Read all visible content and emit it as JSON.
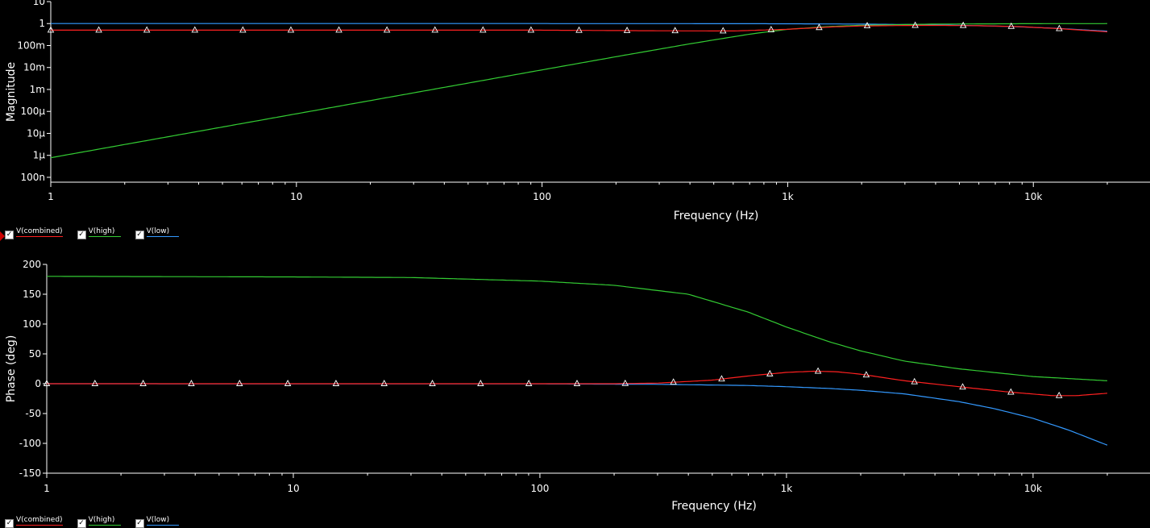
{
  "chart_data": [
    {
      "type": "line",
      "ylabel": "Magnitude",
      "xlabel": "Frequency (Hz)",
      "x_scale": "log",
      "y_scale": "log",
      "xlim": [
        1,
        20000
      ],
      "ylim": [
        6e-08,
        10
      ],
      "x_ticks": [
        {
          "value": 1,
          "label": "1"
        },
        {
          "value": 10,
          "label": "10"
        },
        {
          "value": 100,
          "label": "100"
        },
        {
          "value": 1000,
          "label": "1k"
        },
        {
          "value": 10000,
          "label": "10k"
        }
      ],
      "y_ticks": [
        {
          "value": 10,
          "label": "10"
        },
        {
          "value": 1,
          "label": "1"
        },
        {
          "value": 0.1,
          "label": "100m"
        },
        {
          "value": 0.01,
          "label": "10m"
        },
        {
          "value": 0.001,
          "label": "1m"
        },
        {
          "value": 0.0001,
          "label": "100µ"
        },
        {
          "value": 1e-05,
          "label": "10µ"
        },
        {
          "value": 1e-06,
          "label": "1µ"
        },
        {
          "value": 1e-07,
          "label": "100n"
        }
      ],
      "grid": false,
      "series": [
        {
          "name": "V(low)",
          "color": "#3399ff",
          "markers": false,
          "x": [
            1,
            100,
            500,
            1000,
            2000,
            4000,
            8000,
            12000,
            20000
          ],
          "y": [
            1.0,
            1.0,
            0.99,
            0.98,
            0.95,
            0.88,
            0.74,
            0.62,
            0.45
          ]
        },
        {
          "name": "V(high)",
          "color": "#33cc33",
          "markers": false,
          "x": [
            1,
            10,
            100,
            200,
            400,
            700,
            1000,
            1500,
            2000,
            4000,
            10000,
            20000
          ],
          "y": [
            7.8e-07,
            7.8e-05,
            0.0078,
            0.031,
            0.12,
            0.33,
            0.55,
            0.74,
            0.84,
            0.95,
            0.99,
            1.0
          ]
        },
        {
          "name": "V(combined)",
          "color": "#ff2020",
          "markers": true,
          "x": [
            1,
            100,
            300,
            600,
            1000,
            1500,
            2000,
            3000,
            4000,
            6000,
            9000,
            13000,
            20000
          ],
          "y": [
            0.5,
            0.5,
            0.47,
            0.46,
            0.55,
            0.7,
            0.78,
            0.82,
            0.83,
            0.8,
            0.72,
            0.58,
            0.42
          ]
        }
      ]
    },
    {
      "type": "line",
      "ylabel": "Phase (deg)",
      "xlabel": "Frequency (Hz)",
      "x_scale": "log",
      "xlim": [
        1,
        20000
      ],
      "ylim": [
        -150,
        200
      ],
      "x_ticks": [
        {
          "value": 1,
          "label": "1"
        },
        {
          "value": 10,
          "label": "10"
        },
        {
          "value": 100,
          "label": "100"
        },
        {
          "value": 1000,
          "label": "1k"
        },
        {
          "value": 10000,
          "label": "10k"
        }
      ],
      "y_ticks": [
        {
          "value": 200,
          "label": "200"
        },
        {
          "value": 150,
          "label": "150"
        },
        {
          "value": 100,
          "label": "100"
        },
        {
          "value": 50,
          "label": "50"
        },
        {
          "value": 0,
          "label": "0"
        },
        {
          "value": -50,
          "label": "-50"
        },
        {
          "value": -100,
          "label": "-100"
        },
        {
          "value": -150,
          "label": "-150"
        }
      ],
      "grid": false,
      "series": [
        {
          "name": "V(high)",
          "color": "#33cc33",
          "markers": false,
          "x": [
            1,
            10,
            30,
            100,
            200,
            400,
            700,
            1000,
            1500,
            2000,
            3000,
            5000,
            10000,
            20000
          ],
          "y": [
            180,
            179,
            178,
            172,
            165,
            150,
            120,
            95,
            70,
            55,
            38,
            25,
            12,
            5
          ]
        },
        {
          "name": "V(low)",
          "color": "#3399ff",
          "markers": false,
          "x": [
            1,
            100,
            300,
            700,
            1000,
            1500,
            2000,
            3000,
            5000,
            7000,
            10000,
            14000,
            20000
          ],
          "y": [
            0,
            -0.3,
            -1,
            -3,
            -5,
            -8,
            -11,
            -17,
            -30,
            -42,
            -58,
            -78,
            -103
          ]
        },
        {
          "name": "V(combined)",
          "color": "#ff2020",
          "markers": true,
          "x": [
            1,
            200,
            300,
            500,
            700,
            1000,
            1300,
            1600,
            2000,
            3000,
            5000,
            8000,
            12000,
            15000,
            20000
          ],
          "y": [
            0,
            0,
            1,
            6,
            13,
            19,
            21,
            20,
            16,
            5,
            -5,
            -14,
            -20,
            -20,
            -16
          ]
        }
      ]
    }
  ],
  "legends": [
    [
      {
        "label": "V(combined)",
        "color": "#ff2020"
      },
      {
        "label": "V(high)",
        "color": "#33cc33"
      },
      {
        "label": "V(low)",
        "color": "#3399ff"
      }
    ],
    [
      {
        "label": "V(combined)",
        "color": "#ff2020"
      },
      {
        "label": "V(high)",
        "color": "#33cc33"
      },
      {
        "label": "V(low)",
        "color": "#3399ff"
      }
    ]
  ]
}
